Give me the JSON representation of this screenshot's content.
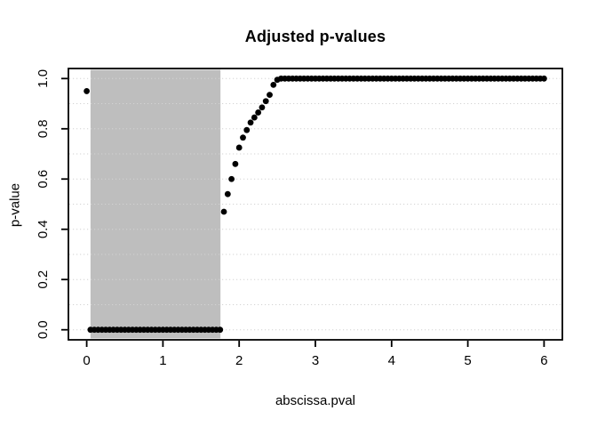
{
  "figure": {
    "kind": "r-base-scatter-plot"
  },
  "chart_data": {
    "type": "scatter",
    "title": "Adjusted p-values",
    "xlabel": "abscissa.pval",
    "ylabel": "p-value",
    "xlim": [
      0,
      6
    ],
    "ylim": [
      0,
      1
    ],
    "x_tick_values": [
      0,
      1,
      2,
      3,
      4,
      5,
      6
    ],
    "x_tick_labels": [
      "0",
      "1",
      "2",
      "3",
      "4",
      "5",
      "6"
    ],
    "y_tick_values": [
      0.0,
      0.2,
      0.4,
      0.6,
      0.8,
      1.0
    ],
    "y_tick_labels": [
      "0.0",
      "0.2",
      "0.4",
      "0.6",
      "0.8",
      "1.0"
    ],
    "grid": {
      "h_values": [
        0.0,
        0.1,
        0.2,
        0.3,
        0.4,
        0.5,
        0.6,
        0.7,
        0.8,
        0.9,
        1.0
      ],
      "style": "dotted",
      "color": "#d3d3d3"
    },
    "shaded_region": {
      "x0": 0.05,
      "x1": 1.755,
      "color": "#bebebe"
    },
    "marker": "filled-circle",
    "point_color": "#000000",
    "border_color": "#000000",
    "background_color": "#ffffff",
    "legend": null,
    "points": [
      [
        0,
        0.95
      ],
      [
        0.05,
        0
      ],
      [
        0.1,
        0
      ],
      [
        0.15,
        0
      ],
      [
        0.2,
        0
      ],
      [
        0.25,
        0
      ],
      [
        0.3,
        0
      ],
      [
        0.35,
        0
      ],
      [
        0.4,
        0
      ],
      [
        0.45,
        0
      ],
      [
        0.5,
        0
      ],
      [
        0.55,
        0
      ],
      [
        0.6,
        0
      ],
      [
        0.65,
        0
      ],
      [
        0.7,
        0
      ],
      [
        0.75,
        0
      ],
      [
        0.8,
        0
      ],
      [
        0.85,
        0
      ],
      [
        0.9,
        0
      ],
      [
        0.95,
        0
      ],
      [
        1,
        0
      ],
      [
        1.05,
        0
      ],
      [
        1.1,
        0
      ],
      [
        1.15,
        0
      ],
      [
        1.2,
        0
      ],
      [
        1.25,
        0
      ],
      [
        1.3,
        0
      ],
      [
        1.35,
        0
      ],
      [
        1.4,
        0
      ],
      [
        1.45,
        0
      ],
      [
        1.5,
        0
      ],
      [
        1.55,
        0
      ],
      [
        1.6,
        0
      ],
      [
        1.65,
        0
      ],
      [
        1.7,
        0
      ],
      [
        1.75,
        0
      ],
      [
        1.8,
        0.47
      ],
      [
        1.85,
        0.54
      ],
      [
        1.9,
        0.6
      ],
      [
        1.95,
        0.66
      ],
      [
        2,
        0.725
      ],
      [
        2.05,
        0.765
      ],
      [
        2.1,
        0.795
      ],
      [
        2.15,
        0.825
      ],
      [
        2.2,
        0.845
      ],
      [
        2.25,
        0.865
      ],
      [
        2.3,
        0.885
      ],
      [
        2.35,
        0.91
      ],
      [
        2.4,
        0.935
      ],
      [
        2.45,
        0.975
      ],
      [
        2.5,
        0.995
      ],
      [
        2.55,
        1
      ],
      [
        2.6,
        1
      ],
      [
        2.65,
        1
      ],
      [
        2.7,
        1
      ],
      [
        2.75,
        1
      ],
      [
        2.8,
        1
      ],
      [
        2.85,
        1
      ],
      [
        2.9,
        1
      ],
      [
        2.95,
        1
      ],
      [
        3,
        1
      ],
      [
        3.05,
        1
      ],
      [
        3.1,
        1
      ],
      [
        3.15,
        1
      ],
      [
        3.2,
        1
      ],
      [
        3.25,
        1
      ],
      [
        3.3,
        1
      ],
      [
        3.35,
        1
      ],
      [
        3.4,
        1
      ],
      [
        3.45,
        1
      ],
      [
        3.5,
        1
      ],
      [
        3.55,
        1
      ],
      [
        3.6,
        1
      ],
      [
        3.65,
        1
      ],
      [
        3.7,
        1
      ],
      [
        3.75,
        1
      ],
      [
        3.8,
        1
      ],
      [
        3.85,
        1
      ],
      [
        3.9,
        1
      ],
      [
        3.95,
        1
      ],
      [
        4,
        1
      ],
      [
        4.05,
        1
      ],
      [
        4.1,
        1
      ],
      [
        4.15,
        1
      ],
      [
        4.2,
        1
      ],
      [
        4.25,
        1
      ],
      [
        4.3,
        1
      ],
      [
        4.35,
        1
      ],
      [
        4.4,
        1
      ],
      [
        4.45,
        1
      ],
      [
        4.5,
        1
      ],
      [
        4.55,
        1
      ],
      [
        4.6,
        1
      ],
      [
        4.65,
        1
      ],
      [
        4.7,
        1
      ],
      [
        4.75,
        1
      ],
      [
        4.8,
        1
      ],
      [
        4.85,
        1
      ],
      [
        4.9,
        1
      ],
      [
        4.95,
        1
      ],
      [
        5,
        1
      ],
      [
        5.05,
        1
      ],
      [
        5.1,
        1
      ],
      [
        5.15,
        1
      ],
      [
        5.2,
        1
      ],
      [
        5.25,
        1
      ],
      [
        5.3,
        1
      ],
      [
        5.35,
        1
      ],
      [
        5.4,
        1
      ],
      [
        5.45,
        1
      ],
      [
        5.5,
        1
      ],
      [
        5.55,
        1
      ],
      [
        5.6,
        1
      ],
      [
        5.65,
        1
      ],
      [
        5.7,
        1
      ],
      [
        5.75,
        1
      ],
      [
        5.8,
        1
      ],
      [
        5.85,
        1
      ],
      [
        5.9,
        1
      ],
      [
        5.95,
        1
      ],
      [
        6,
        1
      ]
    ]
  }
}
